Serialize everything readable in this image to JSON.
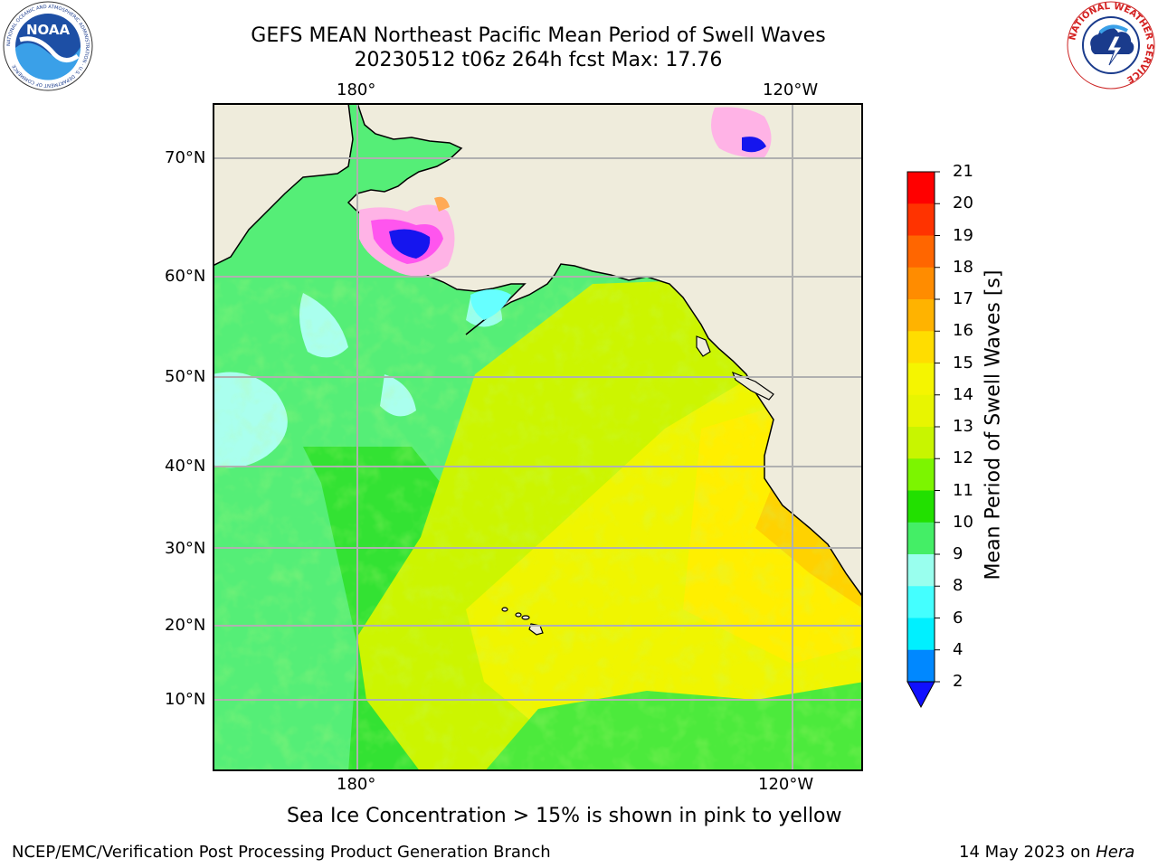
{
  "title": {
    "line1": "GEFS MEAN Northeast Pacific Mean Period of Swell Waves",
    "line2": "20230512 t06z 264h fcst   Max: 17.76"
  },
  "map": {
    "top_lon_labels": [
      "180°",
      "120°W"
    ],
    "bottom_lon_labels": [
      "180°",
      "120°W"
    ],
    "lat_labels": [
      "70°N",
      "60°N",
      "50°N",
      "40°N",
      "30°N",
      "20°N",
      "10°N"
    ],
    "land_color": "#efecdc",
    "grid_color": "#b0b0b0"
  },
  "colorbar": {
    "label": "Mean Period of Swell Waves [s]",
    "ticks": [
      "21",
      "20",
      "19",
      "18",
      "17",
      "16",
      "15",
      "14",
      "13",
      "12",
      "11",
      "10",
      "9",
      "8",
      "6",
      "4",
      "2"
    ],
    "colors": [
      "#ff0000",
      "#ff3300",
      "#ff6600",
      "#ff8c00",
      "#ffb300",
      "#ffdd00",
      "#f5f500",
      "#e8f500",
      "#c8f500",
      "#7cf500",
      "#22e000",
      "#44ee66",
      "#99ffee",
      "#44ffff",
      "#00f0ff",
      "#0088ff"
    ],
    "extend_color": "#1010ff"
  },
  "caption": "Sea Ice Concentration > 15% is shown in pink to yellow",
  "footer": {
    "left": "NCEP/EMC/Verification Post Processing Product Generation Branch",
    "date": "14 May 2023 on ",
    "host": "Hera"
  },
  "logos": {
    "noaa_text": "NOAA",
    "noaa_ring_text": "NATIONAL OCEANIC AND ATMOSPHERIC ADMINISTRATION · U.S. DEPARTMENT OF COMMERCE",
    "nws_ring_text": "NATIONAL WEATHER SERVICE"
  }
}
